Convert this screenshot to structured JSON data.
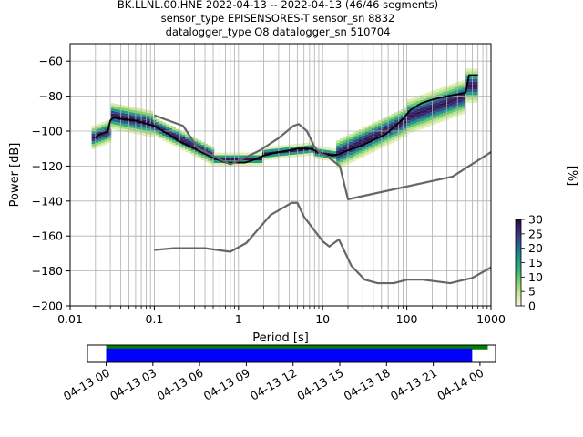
{
  "chart_data": [
    {
      "type": "heatmap",
      "title_lines": [
        "BK.LLNL.00.HNE   2022-04-13 -- 2022-04-13  (46/46 segments)",
        "sensor_type EPISENSORES-T sensor_sn 8832",
        "datalogger_type Q8 datalogger_sn 510704"
      ],
      "xlabel": "Period [s]",
      "ylabel": "Power [dB]",
      "xscale": "log",
      "xlim": [
        0.01,
        1000
      ],
      "ylim": [
        -200,
        -50
      ],
      "x_ticks": [
        0.01,
        0.1,
        1,
        10,
        100,
        1000
      ],
      "x_tick_labels": [
        "0.01",
        "0.1",
        "1",
        "10",
        "100",
        "1000"
      ],
      "y_ticks": [
        -200,
        -180,
        -160,
        -140,
        -120,
        -100,
        -80,
        -60
      ],
      "y_tick_labels": [
        "−200",
        "−180",
        "−160",
        "−140",
        "−120",
        "−100",
        "−80",
        "−60"
      ],
      "grid": true,
      "colorbar": {
        "label": "[%]",
        "range": [
          0,
          30
        ],
        "ticks": [
          0,
          5,
          10,
          15,
          20,
          25,
          30
        ],
        "tick_labels": [
          "0",
          "5",
          "10",
          "15",
          "20",
          "25",
          "30"
        ],
        "colors": [
          "#f9fbd6",
          "#cbe89a",
          "#7ecf6a",
          "#2fb27b",
          "#1f8f8a",
          "#2a5f94",
          "#3b2f76",
          "#2b0a3d"
        ]
      },
      "series": [
        {
          "role": "mode",
          "color": "#000000",
          "points": [
            [
              0.02,
              -104
            ],
            [
              0.022,
              -102
            ],
            [
              0.025,
              -101
            ],
            [
              0.028,
              -100
            ],
            [
              0.03,
              -94
            ],
            [
              0.033,
              -92
            ],
            [
              0.04,
              -93
            ],
            [
              0.06,
              -94
            ],
            [
              0.1,
              -97
            ],
            [
              0.15,
              -102
            ],
            [
              0.2,
              -106
            ],
            [
              0.3,
              -110
            ],
            [
              0.4,
              -113
            ],
            [
              0.55,
              -116
            ],
            [
              0.7,
              -118
            ],
            [
              0.9,
              -118
            ],
            [
              1.2,
              -118
            ],
            [
              1.6,
              -116
            ],
            [
              2,
              -114
            ],
            [
              3,
              -112
            ],
            [
              4,
              -111
            ],
            [
              5,
              -110
            ],
            [
              6,
              -110
            ],
            [
              7,
              -110
            ],
            [
              8,
              -111
            ],
            [
              10,
              -113
            ],
            [
              13,
              -114
            ],
            [
              16,
              -113
            ],
            [
              20,
              -111
            ],
            [
              30,
              -108
            ],
            [
              40,
              -105
            ],
            [
              55,
              -102
            ],
            [
              70,
              -98
            ],
            [
              90,
              -93
            ],
            [
              110,
              -88
            ],
            [
              150,
              -84
            ],
            [
              200,
              -82
            ],
            [
              300,
              -80
            ],
            [
              400,
              -79
            ],
            [
              500,
              -78
            ],
            [
              550,
              -68
            ],
            [
              700,
              -68
            ]
          ]
        },
        {
          "role": "upper_model",
          "color": "#666666",
          "points": [
            [
              0.1,
              -91
            ],
            [
              0.22,
              -97
            ],
            [
              0.33,
              -110
            ],
            [
              0.8,
              -119
            ],
            [
              1.1,
              -116
            ],
            [
              1.8,
              -111
            ],
            [
              3,
              -104
            ],
            [
              4.5,
              -97
            ],
            [
              5.2,
              -96
            ],
            [
              6.5,
              -100
            ],
            [
              8,
              -109
            ],
            [
              9.5,
              -113
            ],
            [
              11,
              -114
            ],
            [
              16,
              -120
            ],
            [
              20,
              -139
            ],
            [
              350,
              -126
            ],
            [
              1000,
              -112
            ]
          ]
        },
        {
          "role": "lower_model",
          "color": "#666666",
          "points": [
            [
              0.1,
              -168
            ],
            [
              0.17,
              -167
            ],
            [
              0.4,
              -167
            ],
            [
              0.8,
              -169
            ],
            [
              1.24,
              -164
            ],
            [
              2.4,
              -148
            ],
            [
              4.3,
              -141
            ],
            [
              5,
              -141
            ],
            [
              6,
              -149
            ],
            [
              10,
              -163
            ],
            [
              12,
              -166
            ],
            [
              15.6,
              -162
            ],
            [
              21.9,
              -177
            ],
            [
              31.6,
              -185
            ],
            [
              45,
              -187
            ],
            [
              70,
              -187
            ],
            [
              101,
              -185
            ],
            [
              154,
              -185
            ],
            [
              328,
              -187
            ],
            [
              600,
              -184
            ],
            [
              1000,
              -178
            ]
          ]
        }
      ],
      "pdf_bands": [
        {
          "x_range": [
            0.018,
            0.03
          ],
          "center": [
            -104,
            -100
          ],
          "half_width": 6
        },
        {
          "x_range": [
            0.03,
            0.1
          ],
          "center": [
            -91,
            -96
          ],
          "half_width": 7
        },
        {
          "x_range": [
            0.1,
            0.5
          ],
          "center": [
            -97,
            -114
          ],
          "half_width": 5
        },
        {
          "x_range": [
            0.5,
            2
          ],
          "center": [
            -116,
            -116
          ],
          "half_width": 3
        },
        {
          "x_range": [
            2,
            8
          ],
          "center": [
            -113,
            -110
          ],
          "half_width": 3
        },
        {
          "x_range": [
            8,
            15
          ],
          "center": [
            -112,
            -114
          ],
          "half_width": 3
        },
        {
          "x_range": [
            15,
            100
          ],
          "center": [
            -113,
            -94
          ],
          "half_width": 8
        },
        {
          "x_range": [
            100,
            500
          ],
          "center": [
            -92,
            -80
          ],
          "half_width": 9
        },
        {
          "x_range": [
            500,
            700
          ],
          "center": [
            -74,
            -74
          ],
          "half_width": 9
        }
      ]
    },
    {
      "type": "bar",
      "role": "data_availability",
      "x_ticks": [
        "04-13 00",
        "04-13 03",
        "04-13 06",
        "04-13 09",
        "04-13 12",
        "04-13 15",
        "04-13 18",
        "04-13 21",
        "04-14 00"
      ],
      "xlim_hours": [
        -1.2,
        25
      ],
      "segments": [
        {
          "color": "#008000",
          "start_hour": 0,
          "end_hour": 24.5
        },
        {
          "color": "#0000ff",
          "start_hour": 0,
          "end_hour": 23.5
        }
      ]
    }
  ]
}
